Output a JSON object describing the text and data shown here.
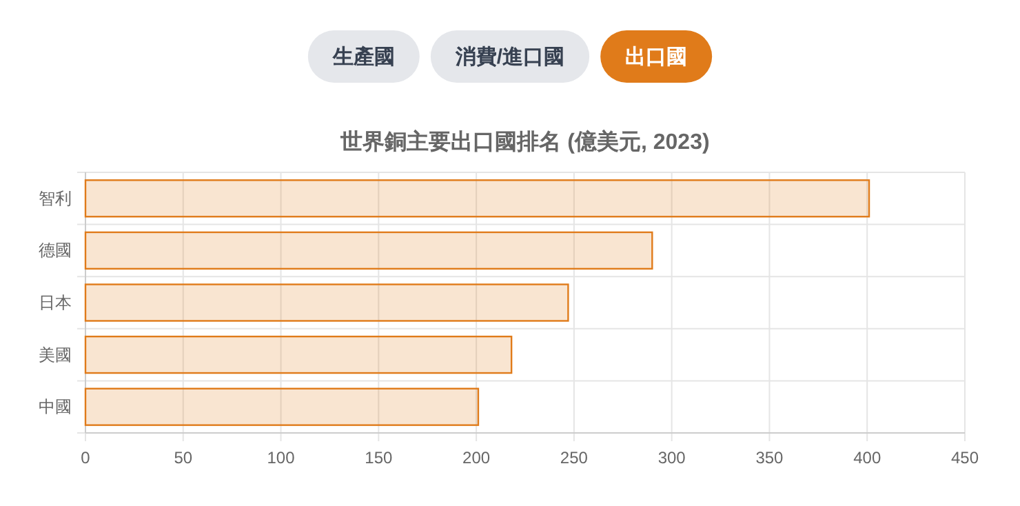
{
  "chart_data": {
    "type": "bar",
    "orientation": "horizontal",
    "title": "世界銅主要出口國排名 (億美元, 2023)",
    "categories": [
      "智利",
      "德國",
      "日本",
      "美國",
      "中國"
    ],
    "values": [
      401,
      290,
      247,
      218,
      201
    ],
    "color": "#e07b1a",
    "xlim": [
      0,
      450
    ],
    "xticks": [
      0,
      50,
      100,
      150,
      200,
      250,
      300,
      350,
      400,
      450
    ],
    "grid": true,
    "annotations": [
      "生產國",
      "消費/進口國",
      "出口國"
    ]
  }
}
